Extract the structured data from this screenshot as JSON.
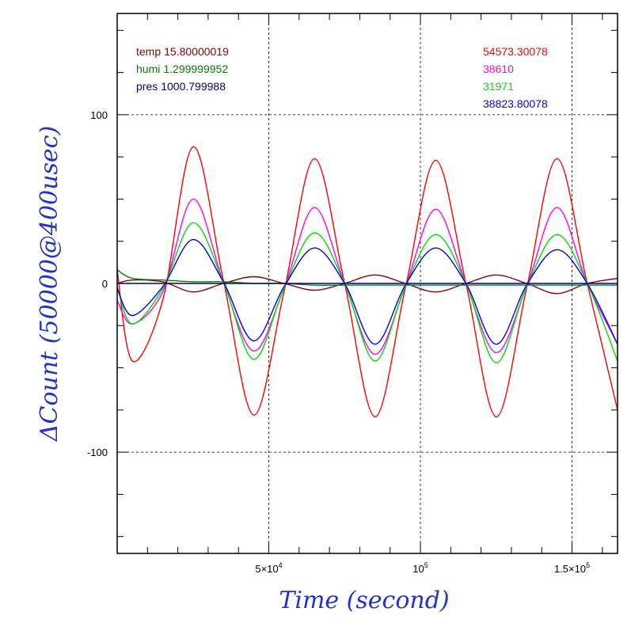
{
  "chart_data": {
    "type": "line",
    "xlabel": "Time (second)",
    "ylabel": "ΔCount (50000@400usec)",
    "xlim": [
      0,
      165000
    ],
    "ylim": [
      -160,
      160
    ],
    "grid": true,
    "x_ticks": [
      {
        "value": 50000,
        "mantissa": "5×10",
        "exp": "4"
      },
      {
        "value": 100000,
        "mantissa": "10",
        "exp": "5"
      },
      {
        "value": 150000,
        "mantissa": "1.5×10",
        "exp": "5"
      }
    ],
    "y_ticks": [
      {
        "value": 100,
        "label": "100"
      },
      {
        "value": 0,
        "label": "0"
      },
      {
        "value": -100,
        "label": "-100"
      }
    ],
    "env_legend": [
      {
        "name": "temp",
        "value": "15.80000019",
        "color": "#8b0000"
      },
      {
        "name": "humi",
        "value": "1.299999952",
        "color": "#008000"
      },
      {
        "name": "pres",
        "value": "1000.799988",
        "color": "#000080"
      }
    ],
    "count_legend": [
      {
        "label": "54573.30078",
        "color": "#ff0000"
      },
      {
        "label": "38610",
        "color": "#ff00ff"
      },
      {
        "label": "31971",
        "color": "#00dd00"
      },
      {
        "label": "38823.80078",
        "color": "#0000ff"
      }
    ],
    "series": [
      {
        "color": "#ff0000",
        "x": [
          0,
          5000,
          15000,
          25000,
          35000,
          45000,
          55000,
          65000,
          75000,
          85000,
          95000,
          105000,
          115000,
          125000,
          135000,
          145000,
          155000,
          165000
        ],
        "y": [
          8,
          -46,
          -10,
          81,
          2,
          -78,
          -5,
          74,
          0,
          -79,
          -3,
          73,
          0,
          -79,
          -3,
          74,
          0,
          -75
        ]
      },
      {
        "color": "#ff00ff",
        "x": [
          0,
          5000,
          15000,
          25000,
          35000,
          45000,
          55000,
          65000,
          75000,
          85000,
          95000,
          105000,
          115000,
          125000,
          135000,
          145000,
          155000,
          165000
        ],
        "y": [
          -10,
          -24,
          -5,
          50,
          1,
          -40,
          -3,
          45,
          0,
          -42,
          -2,
          44,
          0,
          -41,
          -2,
          45,
          0,
          -36
        ]
      },
      {
        "color": "#00dd00",
        "x": [
          0,
          5000,
          15000,
          25000,
          35000,
          45000,
          55000,
          65000,
          75000,
          85000,
          95000,
          105000,
          115000,
          125000,
          135000,
          145000,
          155000,
          165000
        ],
        "y": [
          -2,
          -24,
          -3,
          36,
          1,
          -45,
          -3,
          30,
          0,
          -46,
          -2,
          29,
          0,
          -47,
          -2,
          29,
          0,
          -46
        ]
      },
      {
        "color": "#0000ff",
        "x": [
          0,
          5000,
          15000,
          25000,
          35000,
          45000,
          55000,
          65000,
          75000,
          85000,
          95000,
          105000,
          115000,
          125000,
          135000,
          145000,
          155000,
          165000
        ],
        "y": [
          -3,
          -19,
          -2,
          26,
          1,
          -34,
          -2,
          21,
          0,
          -36,
          -1,
          21,
          0,
          -36,
          -1,
          20,
          0,
          -36
        ]
      },
      {
        "color": "#8b0000",
        "x": [
          0,
          5000,
          15000,
          25000,
          35000,
          45000,
          55000,
          65000,
          75000,
          85000,
          95000,
          105000,
          115000,
          125000,
          135000,
          145000,
          155000,
          165000
        ],
        "y": [
          0,
          2,
          1,
          -5,
          0,
          4,
          0,
          -4,
          0,
          5,
          0,
          -5,
          0,
          5,
          0,
          -6,
          0,
          3
        ]
      },
      {
        "color": "#008000",
        "x": [
          0,
          5000,
          15000,
          25000,
          35000,
          45000,
          55000,
          65000,
          75000,
          85000,
          95000,
          105000,
          115000,
          125000,
          135000,
          145000,
          155000,
          165000
        ],
        "y": [
          8,
          3,
          2,
          1,
          1,
          0,
          0,
          -1,
          -1,
          -1,
          -1,
          -1,
          -1,
          -1,
          -1,
          -1,
          -1,
          -1
        ]
      },
      {
        "color": "#000080",
        "x": [
          0,
          5000,
          15000,
          25000,
          35000,
          45000,
          55000,
          65000,
          75000,
          85000,
          95000,
          105000,
          115000,
          125000,
          135000,
          145000,
          155000,
          165000
        ],
        "y": [
          0,
          0,
          0,
          0,
          0,
          0,
          0,
          0,
          0,
          0,
          0,
          0,
          0,
          0,
          0,
          0,
          0,
          0
        ]
      }
    ]
  }
}
